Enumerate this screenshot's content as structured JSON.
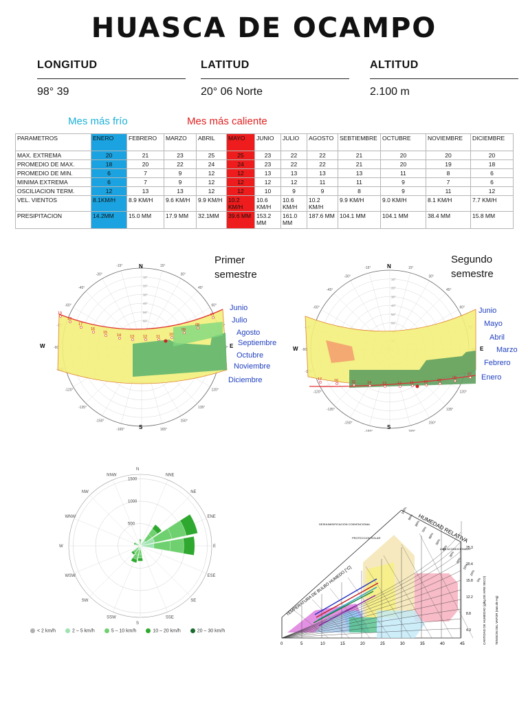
{
  "title": "HUASCA DE OCAMPO",
  "info": [
    {
      "label": "LONGITUD",
      "value": "98° 39"
    },
    {
      "label": "LATITUD",
      "value": "20° 06 Norte"
    },
    {
      "label": "ALTITUD",
      "value": "2.100 m"
    }
  ],
  "mes_frio": "Mes más frío",
  "mes_caliente": "Mes más caliente",
  "colors": {
    "frio": "#1aa3e0",
    "caliente": "#ee1c1c"
  },
  "table": {
    "header": [
      "PARAMETROS",
      "ENERO",
      "FEBRERO",
      "MARZO",
      "ABRIL",
      "MAYO",
      "JUNIO",
      "JULIO",
      "AGOSTO",
      "SEBTIEMBRE",
      "OCTUBRE",
      "NOVIEMBRE",
      "DICIEMBRE"
    ],
    "rows": [
      [
        "MAX. EXTREMA",
        "20",
        "21",
        "23",
        "25",
        "25",
        "23",
        "22",
        "22",
        "21",
        "20",
        "20",
        "20"
      ],
      [
        "PROMEDIO DE MAX.",
        "18",
        "20",
        "22",
        "24",
        "24",
        "23",
        "22",
        "22",
        "21",
        "20",
        "19",
        "18"
      ],
      [
        "PROMEDIO DE MIN.",
        "6",
        "7",
        "9",
        "12",
        "12",
        "13",
        "13",
        "13",
        "13",
        "11",
        "8",
        "6"
      ],
      [
        "MINIMA EXTREMA",
        "6",
        "7",
        "9",
        "12",
        "12",
        "12",
        "12",
        "11",
        "11",
        "9",
        "7",
        "6"
      ],
      [
        "OSCILIACION TERM.",
        "12",
        "13",
        "13",
        "12",
        "12",
        "10",
        "9",
        "9",
        "8",
        "9",
        "11",
        "12"
      ],
      [
        "VEL. VIENTOS",
        "8.1KM/H",
        "8.9 KM/H",
        "9.6 KM/H",
        "9.9 KM/H",
        "10.2 KM/H",
        "10.6 KM/H",
        "10.6 KM/H",
        "10.2 KM/H",
        "9.9 KM/H",
        "9.0 KM/H",
        "8.1 KM/H",
        "7.7 KM/H"
      ],
      [
        "PRESIPITACION",
        "14.2MM",
        "15.0 MM",
        "17.9 MM",
        "32.1MM",
        "39.6 MM",
        "153.2 MM",
        "161.0 MM",
        "187.6 MM",
        "104.1 MM",
        "104.1 MM",
        "38.4 MM",
        "15.8 MM"
      ]
    ]
  },
  "sun1": {
    "label_line1": "Primer",
    "label_line2": "semestre",
    "months": [
      "Junio",
      "Julio",
      "Agosto",
      "Septiembre",
      "Octubre",
      "Noviembre",
      "Diciembre"
    ],
    "hours": [
      "19",
      "18",
      "17",
      "16",
      "15",
      "14",
      "13",
      "12",
      "11",
      "10",
      "09",
      "08",
      "07"
    ]
  },
  "sun2": {
    "label_line1": "Segundo",
    "label_line2": "semestre",
    "months": [
      "Junio",
      "Mayo",
      "Abril",
      "Marzo",
      "Febrero",
      "Enero"
    ],
    "hours": [
      "17",
      "16",
      "15",
      "14",
      "13",
      "12",
      "11",
      "10",
      "09",
      "08",
      "07"
    ]
  },
  "compass": {
    "n": "N",
    "s": "S",
    "e": "E",
    "w": "W"
  },
  "compass_ticks": [
    "15°",
    "30°",
    "45°",
    "60°",
    "75°",
    "90°",
    "105°",
    "120°",
    "135°",
    "150°",
    "165°",
    "-15°",
    "-30°",
    "-45°",
    "-60°",
    "-75°",
    "-90°",
    "-105°",
    "-120°",
    "-135°",
    "-150°",
    "-165°"
  ],
  "altitude_ticks": [
    "80°",
    "70°",
    "60°",
    "50°",
    "40°",
    "30°",
    "20°",
    "10°"
  ],
  "windrose": {
    "directions": [
      "N",
      "NNE",
      "NE",
      "ENE",
      "E",
      "ESE",
      "SE",
      "SSE",
      "S",
      "SSW",
      "SW",
      "WSW",
      "W",
      "WNW",
      "NW",
      "NNW"
    ],
    "rings": [
      "500",
      "1000",
      "1500"
    ],
    "legend": [
      "< 2 km/h",
      "2 – 5 km/h",
      "5 – 10 km/h",
      "10 – 20 km/h",
      "20 – 30 km/h"
    ],
    "legend_colors": [
      "#b0b0b0",
      "#9fe3b0",
      "#6fd06f",
      "#2ea82e",
      "#1a6b2a"
    ],
    "petals": [
      {
        "dir": "ENE",
        "value": 1350
      },
      {
        "dir": "E",
        "value": 1250
      },
      {
        "dir": "NE",
        "value": 600
      },
      {
        "dir": "SSW",
        "value": 400
      },
      {
        "dir": "S",
        "value": 350
      },
      {
        "dir": "SW",
        "value": 250
      },
      {
        "dir": "WNW",
        "value": 150
      },
      {
        "dir": "N",
        "value": 150
      }
    ]
  },
  "psychro": {
    "title": "HUMEDAD RELATIVA",
    "label_deshum": "DESHUMIDIFICACION CONVENCIONAL",
    "label_proteccion": "PROTECCION SOLAR",
    "label_aire": "AIRE ACONDICIONADO",
    "y_axis": "TEMPERATURA DE BULBO HUMEDO [°C]",
    "right_axis1": "CANTIDAD DE HUMEDAD (g/kg DE AIRE SECO)",
    "right_axis2": "TENSION DEL VAPOR (mm de Hg)",
    "x_ticks": [
      "0",
      "5",
      "10",
      "15",
      "20",
      "25",
      "30",
      "35",
      "40",
      "45"
    ],
    "rh_labels": [
      "100%",
      "90%",
      "80%",
      "70%",
      "60%",
      "50%",
      "40%",
      "30%",
      "20%",
      "15%",
      "10%",
      "5%"
    ],
    "right_ticks": [
      "25.3",
      "20.4",
      "15.8",
      "12.2",
      "8.8",
      "4.3"
    ]
  }
}
